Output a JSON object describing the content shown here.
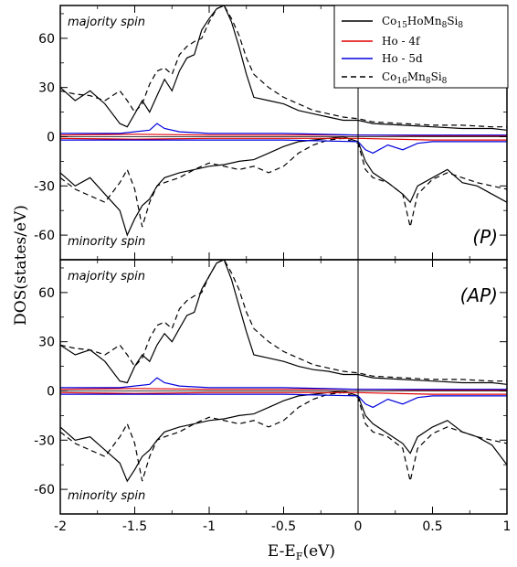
{
  "chart_data": {
    "type": "line",
    "xlabel": "E-E",
    "xlabel_sub": "F",
    "xlabel_unit": "(eV)",
    "ylabel": "DOS(states/eV)",
    "xlim": [
      -2,
      1
    ],
    "x_ticks": [
      "-2",
      "-1.5",
      "-1",
      "-0.5",
      "0",
      "0.5",
      "1"
    ],
    "y_ticks": [
      "-60",
      "-30",
      "0",
      "30",
      "60"
    ],
    "fermi_line_x": 0,
    "legend_position": "top-right",
    "legend": [
      {
        "base": "Co",
        "sub": "15",
        "mid": "HoMn",
        "sub2": "8",
        "mid2": "Si",
        "sub3": "8",
        "color": "#000000",
        "dash": false
      },
      {
        "text": "Ho - 4f",
        "color": "#e00000",
        "dash": false
      },
      {
        "text": "Ho - 5d",
        "color": "#0000dd",
        "dash": false
      },
      {
        "base": "Co",
        "sub": "16",
        "mid": "Mn",
        "sub2": "8",
        "mid2": "Si",
        "sub3": "8",
        "color": "#000000",
        "dash": true
      }
    ],
    "panels": [
      {
        "label": "(P)",
        "annot_top": "majority spin",
        "annot_bottom": "minority spin",
        "ylim": [
          -75,
          80
        ],
        "series": [
          {
            "name": "Co15HoMn8Si8 (up)",
            "color": "#000000",
            "dash": false,
            "x": [
              -2.0,
              -1.9,
              -1.8,
              -1.7,
              -1.6,
              -1.55,
              -1.5,
              -1.45,
              -1.4,
              -1.35,
              -1.3,
              -1.25,
              -1.2,
              -1.15,
              -1.1,
              -1.05,
              -1.0,
              -0.95,
              -0.9,
              -0.85,
              -0.8,
              -0.75,
              -0.7,
              -0.6,
              -0.5,
              -0.4,
              -0.3,
              -0.2,
              -0.1,
              0.0,
              0.1,
              0.3,
              0.5,
              0.7,
              0.9,
              1.0
            ],
            "y": [
              30,
              22,
              28,
              20,
              8,
              6,
              14,
              22,
              15,
              25,
              35,
              28,
              40,
              48,
              50,
              65,
              72,
              78,
              80,
              70,
              55,
              38,
              24,
              22,
              20,
              16,
              14,
              12,
              10,
              10,
              8,
              7,
              6,
              5,
              5,
              4
            ]
          },
          {
            "name": "Co16Mn8Si8 (up)",
            "color": "#000000",
            "dash": true,
            "x": [
              -2.0,
              -1.9,
              -1.8,
              -1.7,
              -1.6,
              -1.55,
              -1.5,
              -1.45,
              -1.4,
              -1.35,
              -1.3,
              -1.25,
              -1.2,
              -1.15,
              -1.1,
              -1.05,
              -1.0,
              -0.95,
              -0.9,
              -0.85,
              -0.8,
              -0.75,
              -0.7,
              -0.6,
              -0.5,
              -0.4,
              -0.3,
              -0.2,
              -0.1,
              0.0,
              0.1,
              0.3,
              0.5,
              0.7,
              0.9,
              1.0
            ],
            "y": [
              28,
              26,
              25,
              22,
              28,
              22,
              15,
              20,
              32,
              40,
              42,
              38,
              50,
              55,
              58,
              60,
              70,
              78,
              80,
              72,
              62,
              48,
              38,
              30,
              24,
              20,
              16,
              14,
              12,
              11,
              9,
              8,
              7,
              7,
              6,
              6
            ]
          },
          {
            "name": "Ho - 4f (up)",
            "color": "#e00000",
            "dash": false,
            "x": [
              -2.0,
              -1.5,
              -1.0,
              -0.5,
              0.0,
              0.5,
              1.0
            ],
            "y": [
              1,
              1.5,
              1,
              1,
              1,
              0.5,
              0.5
            ]
          },
          {
            "name": "Ho - 5d (up)",
            "color": "#0000dd",
            "dash": false,
            "x": [
              -2.0,
              -1.6,
              -1.4,
              -1.35,
              -1.3,
              -1.2,
              -1.0,
              -0.5,
              0.0,
              0.5,
              1.0
            ],
            "y": [
              2,
              2,
              4,
              8,
              5,
              3,
              2,
              2,
              1,
              1,
              1
            ]
          },
          {
            "name": "Co15HoMn8Si8 (down)",
            "color": "#000000",
            "dash": false,
            "x": [
              -2.0,
              -1.9,
              -1.8,
              -1.7,
              -1.6,
              -1.55,
              -1.5,
              -1.45,
              -1.4,
              -1.35,
              -1.3,
              -1.2,
              -1.1,
              -1.0,
              -0.9,
              -0.8,
              -0.7,
              -0.6,
              -0.5,
              -0.4,
              -0.3,
              -0.2,
              -0.1,
              0.0,
              0.05,
              0.1,
              0.2,
              0.3,
              0.35,
              0.4,
              0.5,
              0.6,
              0.7,
              0.8,
              0.9,
              1.0
            ],
            "y": [
              -22,
              -30,
              -25,
              -35,
              -45,
              -60,
              -50,
              -42,
              -38,
              -30,
              -25,
              -22,
              -20,
              -18,
              -17,
              -15,
              -14,
              -10,
              -6,
              -3,
              -2,
              -1,
              0,
              -3,
              -15,
              -22,
              -28,
              -35,
              -40,
              -30,
              -25,
              -20,
              -28,
              -30,
              -35,
              -40
            ]
          },
          {
            "name": "Co16Mn8Si8 (down)",
            "color": "#000000",
            "dash": true,
            "x": [
              -2.0,
              -1.9,
              -1.8,
              -1.7,
              -1.6,
              -1.55,
              -1.5,
              -1.45,
              -1.4,
              -1.35,
              -1.3,
              -1.2,
              -1.1,
              -1.0,
              -0.9,
              -0.8,
              -0.7,
              -0.6,
              -0.5,
              -0.4,
              -0.3,
              -0.2,
              -0.1,
              0.0,
              0.05,
              0.1,
              0.2,
              0.3,
              0.35,
              0.4,
              0.5,
              0.6,
              0.7,
              0.8,
              0.9,
              1.0
            ],
            "y": [
              -25,
              -32,
              -36,
              -40,
              -28,
              -20,
              -32,
              -55,
              -40,
              -30,
              -28,
              -25,
              -20,
              -16,
              -18,
              -20,
              -18,
              -22,
              -18,
              -10,
              -5,
              -2,
              -1,
              -4,
              -20,
              -25,
              -28,
              -35,
              -55,
              -35,
              -26,
              -22,
              -25,
              -28,
              -30,
              -32
            ]
          },
          {
            "name": "Ho - 4f (down)",
            "color": "#e00000",
            "dash": false,
            "x": [
              -2.0,
              -1.5,
              -1.0,
              -0.5,
              0.0,
              0.5,
              1.0
            ],
            "y": [
              -1,
              -1.5,
              -1,
              -1,
              -1,
              -2,
              -2
            ]
          },
          {
            "name": "Ho - 5d (down)",
            "color": "#0000dd",
            "dash": false,
            "x": [
              -2.0,
              -1.5,
              -1.0,
              -0.5,
              0.0,
              0.05,
              0.1,
              0.2,
              0.3,
              0.4,
              0.5,
              0.7,
              1.0
            ],
            "y": [
              -2,
              -2,
              -2,
              -2,
              -3,
              -8,
              -10,
              -5,
              -8,
              -4,
              -3,
              -3,
              -3
            ]
          }
        ]
      },
      {
        "label": "(AP)",
        "annot_top": "majority spin",
        "annot_bottom": "minority spin",
        "ylim": [
          -75,
          80
        ],
        "series": [
          {
            "name": "Co15HoMn8Si8 (up)",
            "color": "#000000",
            "dash": false,
            "x": [
              -2.0,
              -1.9,
              -1.8,
              -1.7,
              -1.6,
              -1.55,
              -1.5,
              -1.45,
              -1.4,
              -1.35,
              -1.3,
              -1.25,
              -1.2,
              -1.15,
              -1.1,
              -1.05,
              -1.0,
              -0.95,
              -0.9,
              -0.85,
              -0.8,
              -0.75,
              -0.7,
              -0.6,
              -0.5,
              -0.4,
              -0.3,
              -0.2,
              -0.1,
              0.0,
              0.1,
              0.3,
              0.5,
              0.7,
              0.9,
              1.0
            ],
            "y": [
              28,
              22,
              25,
              18,
              6,
              5,
              15,
              22,
              18,
              28,
              35,
              30,
              38,
              46,
              48,
              62,
              70,
              78,
              80,
              68,
              52,
              36,
              22,
              20,
              18,
              15,
              13,
              12,
              10,
              10,
              8,
              7,
              6,
              5,
              5,
              4
            ]
          },
          {
            "name": "Co16Mn8Si8 (up)",
            "color": "#000000",
            "dash": true,
            "x": [
              -2.0,
              -1.9,
              -1.8,
              -1.7,
              -1.6,
              -1.55,
              -1.5,
              -1.45,
              -1.4,
              -1.35,
              -1.3,
              -1.25,
              -1.2,
              -1.15,
              -1.1,
              -1.05,
              -1.0,
              -0.95,
              -0.9,
              -0.85,
              -0.8,
              -0.75,
              -0.7,
              -0.6,
              -0.5,
              -0.4,
              -0.3,
              -0.2,
              -0.1,
              0.0,
              0.1,
              0.3,
              0.5,
              0.7,
              0.9,
              1.0
            ],
            "y": [
              28,
              26,
              25,
              22,
              28,
              22,
              15,
              20,
              32,
              40,
              42,
              38,
              50,
              55,
              58,
              60,
              70,
              78,
              80,
              72,
              62,
              48,
              38,
              30,
              24,
              20,
              16,
              14,
              12,
              11,
              9,
              8,
              7,
              7,
              6,
              6
            ]
          },
          {
            "name": "Ho - 4f (up)",
            "color": "#e00000",
            "dash": false,
            "x": [
              -2.0,
              -1.5,
              -1.0,
              -0.5,
              0.0,
              0.5,
              1.0
            ],
            "y": [
              1,
              1.5,
              1,
              1,
              1,
              0.5,
              0.5
            ]
          },
          {
            "name": "Ho - 5d (up)",
            "color": "#0000dd",
            "dash": false,
            "x": [
              -2.0,
              -1.6,
              -1.4,
              -1.35,
              -1.3,
              -1.2,
              -1.0,
              -0.5,
              0.0,
              0.5,
              1.0
            ],
            "y": [
              2,
              2,
              4,
              8,
              5,
              3,
              2,
              2,
              1,
              1,
              1
            ]
          },
          {
            "name": "Co15HoMn8Si8 (down)",
            "color": "#000000",
            "dash": false,
            "x": [
              -2.0,
              -1.9,
              -1.8,
              -1.7,
              -1.6,
              -1.55,
              -1.5,
              -1.45,
              -1.4,
              -1.35,
              -1.3,
              -1.2,
              -1.1,
              -1.0,
              -0.9,
              -0.8,
              -0.7,
              -0.6,
              -0.5,
              -0.4,
              -0.3,
              -0.2,
              -0.1,
              0.0,
              0.05,
              0.1,
              0.2,
              0.3,
              0.35,
              0.4,
              0.5,
              0.6,
              0.7,
              0.8,
              0.9,
              1.0
            ],
            "y": [
              -22,
              -30,
              -28,
              -36,
              -44,
              -55,
              -48,
              -40,
              -36,
              -30,
              -25,
              -22,
              -20,
              -18,
              -17,
              -15,
              -14,
              -10,
              -6,
              -3,
              -2,
              -1,
              0,
              -3,
              -15,
              -20,
              -26,
              -32,
              -38,
              -28,
              -22,
              -18,
              -25,
              -28,
              -33,
              -45
            ]
          },
          {
            "name": "Co16Mn8Si8 (down)",
            "color": "#000000",
            "dash": true,
            "x": [
              -2.0,
              -1.9,
              -1.8,
              -1.7,
              -1.6,
              -1.55,
              -1.5,
              -1.45,
              -1.4,
              -1.35,
              -1.3,
              -1.2,
              -1.1,
              -1.0,
              -0.9,
              -0.8,
              -0.7,
              -0.6,
              -0.5,
              -0.4,
              -0.3,
              -0.2,
              -0.1,
              0.0,
              0.05,
              0.1,
              0.2,
              0.3,
              0.35,
              0.4,
              0.5,
              0.6,
              0.7,
              0.8,
              0.9,
              1.0
            ],
            "y": [
              -25,
              -32,
              -36,
              -40,
              -28,
              -20,
              -32,
              -55,
              -40,
              -30,
              -28,
              -25,
              -20,
              -16,
              -18,
              -20,
              -18,
              -22,
              -18,
              -10,
              -5,
              -2,
              -1,
              -4,
              -20,
              -25,
              -28,
              -35,
              -55,
              -35,
              -26,
              -22,
              -25,
              -28,
              -30,
              -32
            ]
          },
          {
            "name": "Ho - 4f (down)",
            "color": "#e00000",
            "dash": false,
            "x": [
              -2.0,
              -1.5,
              -1.0,
              -0.5,
              0.0,
              0.5,
              1.0
            ],
            "y": [
              -1,
              -1.5,
              -1,
              -1,
              -1,
              -2,
              -2
            ]
          },
          {
            "name": "Ho - 5d (down)",
            "color": "#0000dd",
            "dash": false,
            "x": [
              -2.0,
              -1.5,
              -1.0,
              -0.5,
              0.0,
              0.05,
              0.1,
              0.2,
              0.3,
              0.4,
              0.5,
              0.7,
              1.0
            ],
            "y": [
              -2,
              -2,
              -2,
              -2,
              -3,
              -8,
              -10,
              -5,
              -8,
              -4,
              -3,
              -3,
              -3
            ]
          }
        ]
      }
    ]
  }
}
